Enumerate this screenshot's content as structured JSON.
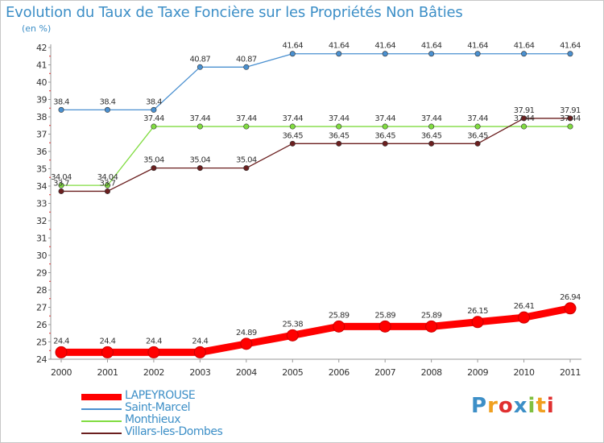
{
  "chart_data": {
    "type": "line",
    "title": "Evolution du Taux de Taxe Foncière sur les Propriétés Non Bâties",
    "ylabel": "(en %)",
    "xlabel": "",
    "x": [
      "2000",
      "2001",
      "2002",
      "2003",
      "2004",
      "2005",
      "2006",
      "2007",
      "2008",
      "2009",
      "2010",
      "2011"
    ],
    "ylim": [
      24,
      42
    ],
    "yticks": [
      24,
      25,
      26,
      27,
      28,
      29,
      30,
      31,
      32,
      33,
      34,
      35,
      36,
      37,
      38,
      39,
      40,
      41,
      42
    ],
    "grid": false,
    "legend_position": "bottom-left",
    "series": [
      {
        "name": "LAPEYROUSE",
        "color": "#ff0000",
        "values": [
          24.4,
          24.4,
          24.4,
          24.4,
          24.89,
          25.38,
          25.89,
          25.89,
          25.89,
          26.15,
          26.41,
          26.94
        ],
        "labels": [
          "24.4",
          "24.4",
          "24.4",
          "24.4",
          "24.89",
          "25.38",
          "25.89",
          "25.89",
          "25.89",
          "26.15",
          "26.41",
          "26.94"
        ]
      },
      {
        "name": "Saint-Marcel",
        "color": "#4a90d0",
        "values": [
          38.4,
          38.4,
          38.4,
          40.87,
          40.87,
          41.64,
          41.64,
          41.64,
          41.64,
          41.64,
          41.64,
          41.64
        ],
        "labels": [
          "38.4",
          "38.4",
          "38.4",
          "40.87",
          "40.87",
          "41.64",
          "41.64",
          "41.64",
          "41.64",
          "41.64",
          "41.64",
          "41.64"
        ]
      },
      {
        "name": "Monthieux",
        "color": "#80dc40",
        "values": [
          34.04,
          34.04,
          37.44,
          37.44,
          37.44,
          37.44,
          37.44,
          37.44,
          37.44,
          37.44,
          37.44,
          37.44
        ],
        "labels": [
          "34.04",
          "34.04",
          "37.44",
          "37.44",
          "37.44",
          "37.44",
          "37.44",
          "37.44",
          "37.44",
          "37.44",
          "37.44",
          "37.44"
        ]
      },
      {
        "name": "Villars-les-Dombes",
        "color": "#6b1f1f",
        "values": [
          33.7,
          33.7,
          35.04,
          35.04,
          35.04,
          36.45,
          36.45,
          36.45,
          36.45,
          36.45,
          37.91,
          37.91
        ],
        "labels": [
          "33.7",
          "33.7",
          "35.04",
          "35.04",
          "35.04",
          "36.45",
          "36.45",
          "36.45",
          "36.45",
          "36.45",
          "37.91",
          "37.91"
        ]
      }
    ]
  },
  "logo": {
    "text": "Proxiti",
    "letter_colors": [
      "#3d8fc7",
      "#f0a020",
      "#e03030",
      "#3d8fc7",
      "#80c040",
      "#f0a020",
      "#e03030"
    ]
  }
}
